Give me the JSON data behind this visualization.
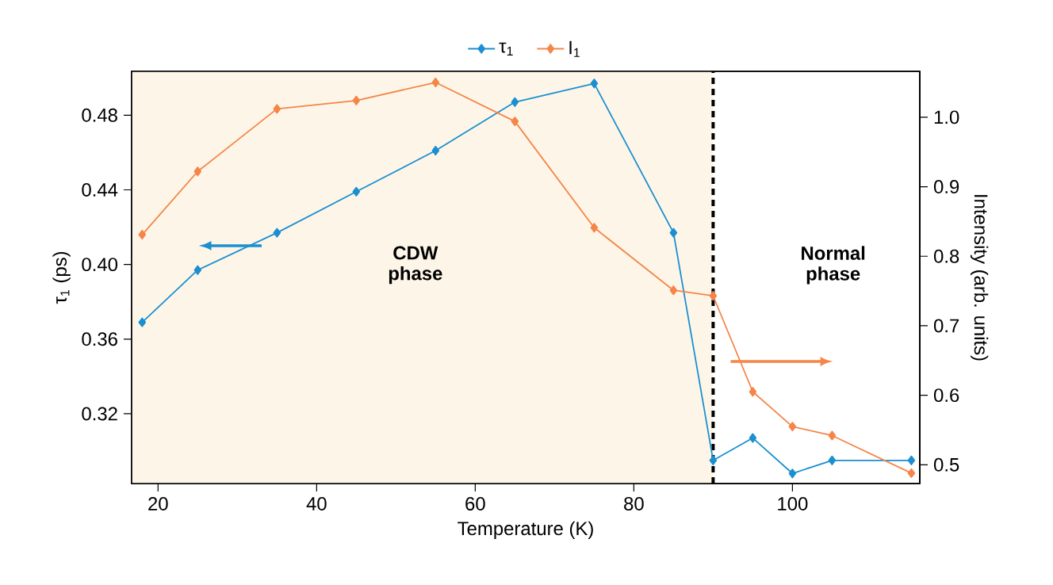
{
  "chart_data": {
    "type": "line",
    "xlabel": "Temperature (K)",
    "ylabel": "τ$_{1}$ (ps)",
    "y2label": "Intensity (arb. units)",
    "xlim": [
      16.67,
      116.06
    ],
    "xticks": [
      20,
      40,
      60,
      80,
      100
    ],
    "ylim": [
      0.2826,
      0.5035
    ],
    "yticks": [
      0.32,
      0.36,
      {
        "value": 0.4,
        "label": "0.40"
      },
      0.44,
      0.48
    ],
    "y2lim": [
      0.473,
      1.066
    ],
    "y2ticks": [
      {
        "value": 0.5,
        "label": "0.5"
      },
      {
        "value": 0.6,
        "label": "0.6"
      },
      {
        "value": 0.7,
        "label": "0.7"
      },
      {
        "value": 0.8,
        "label": "0.8"
      },
      {
        "value": 0.9,
        "label": "0.9"
      },
      {
        "value": 1.0,
        "label": "1.0"
      }
    ],
    "x": [
      18,
      25,
      35,
      45,
      55,
      65,
      75,
      85,
      90,
      95,
      100,
      105,
      115
    ],
    "series": [
      {
        "name": "τ$_{1}$",
        "color": "#1b8fd0",
        "values": [
          0.369,
          0.397,
          0.417,
          0.439,
          0.461,
          0.487,
          0.497,
          0.417,
          0.295,
          0.307,
          0.288,
          0.295,
          0.295
        ]
      },
      {
        "name": "I$_{1}$",
        "color": "#f58548",
        "axis": "y2",
        "values": [
          0.831,
          0.922,
          1.012,
          1.024,
          1.05,
          0.994,
          0.841,
          0.751,
          0.743,
          0.605,
          0.555,
          0.542,
          0.488
        ]
      }
    ],
    "marker": "diamond",
    "legend": "top",
    "grid": false,
    "bands": [
      {
        "axis": "x",
        "from": 16.67,
        "to": 90,
        "color": "#fdf6e8"
      }
    ],
    "ref_lines": [
      {
        "axis": "x",
        "value": 90,
        "color": "#000000",
        "line_style": "dashed"
      }
    ],
    "annotations": [
      "CDW phase",
      "Normal phase"
    ]
  }
}
